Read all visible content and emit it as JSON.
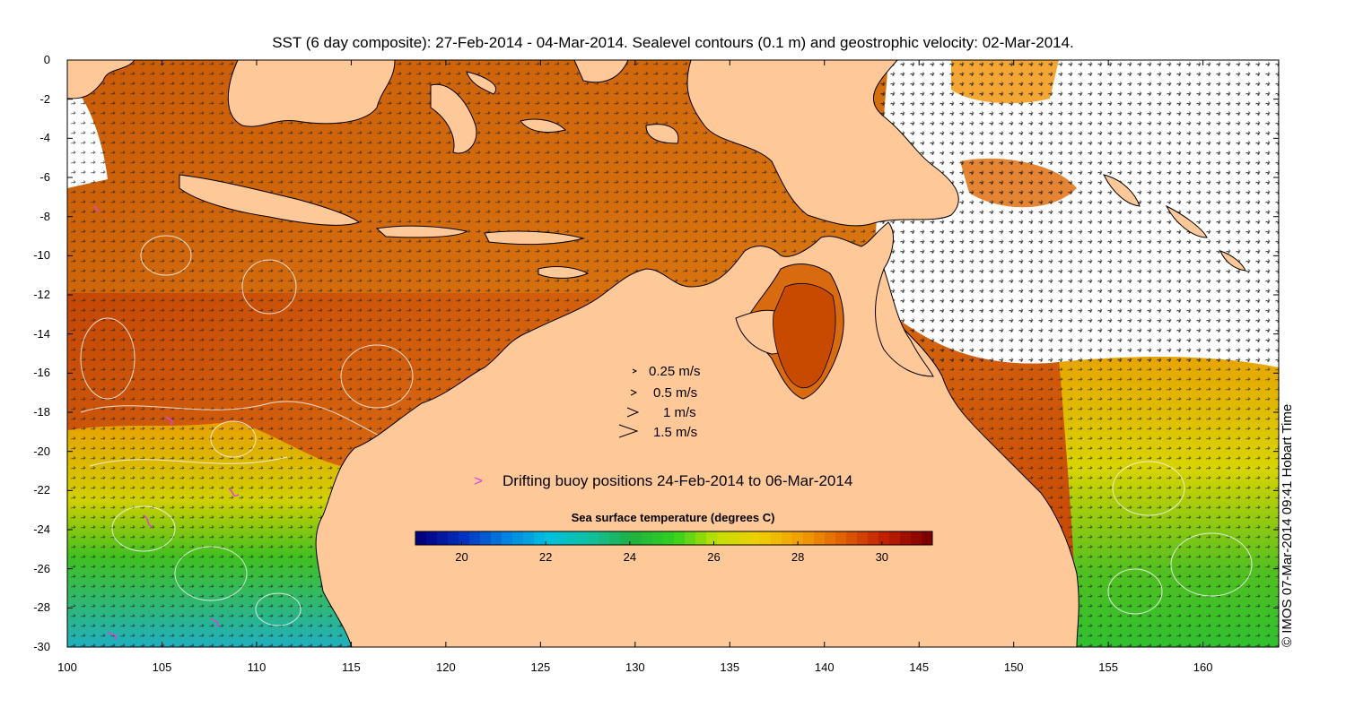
{
  "title": "SST (6 day composite): 27-Feb-2014 - 04-Mar-2014. Sealevel contours (0.1 m) and geostrophic velocity: 02-Mar-2014.",
  "copyright": "© IMOS 07-Mar-2014 09:41 Hobart Time",
  "axes": {
    "lon_ticks": [
      "100",
      "105",
      "110",
      "115",
      "120",
      "125",
      "130",
      "135",
      "140",
      "145",
      "150",
      "155",
      "160"
    ],
    "lat_ticks": [
      "0",
      "-2",
      "-4",
      "-6",
      "-8",
      "-10",
      "-12",
      "-14",
      "-16",
      "-18",
      "-20",
      "-22",
      "-24",
      "-26",
      "-28",
      "-30"
    ],
    "lon_range": [
      100,
      164
    ],
    "lat_range": [
      -30,
      0
    ]
  },
  "velocity_legend": [
    {
      "label": "0.25 m/s"
    },
    {
      "label": "0.5 m/s"
    },
    {
      "label": "1 m/s"
    },
    {
      "label": "1.5 m/s"
    }
  ],
  "buoy_legend": {
    "symbol": ">",
    "label": "Drifting buoy positions 24-Feb-2014 to 06-Mar-2014",
    "color": "#e040e0"
  },
  "colorbar": {
    "title": "Sea surface temperature (degrees C)",
    "ticks": [
      "20",
      "22",
      "24",
      "26",
      "28",
      "30"
    ],
    "range": [
      18.9,
      31.2
    ],
    "colors": [
      "#00007f",
      "#0030c0",
      "#0080e0",
      "#00c0e0",
      "#10c0a0",
      "#20b040",
      "#30d020",
      "#c0e000",
      "#f0d000",
      "#f0a000",
      "#e06000",
      "#c02000",
      "#7f0000"
    ]
  },
  "land_color": "#ffc898",
  "cloud_color": "#ffffff"
}
